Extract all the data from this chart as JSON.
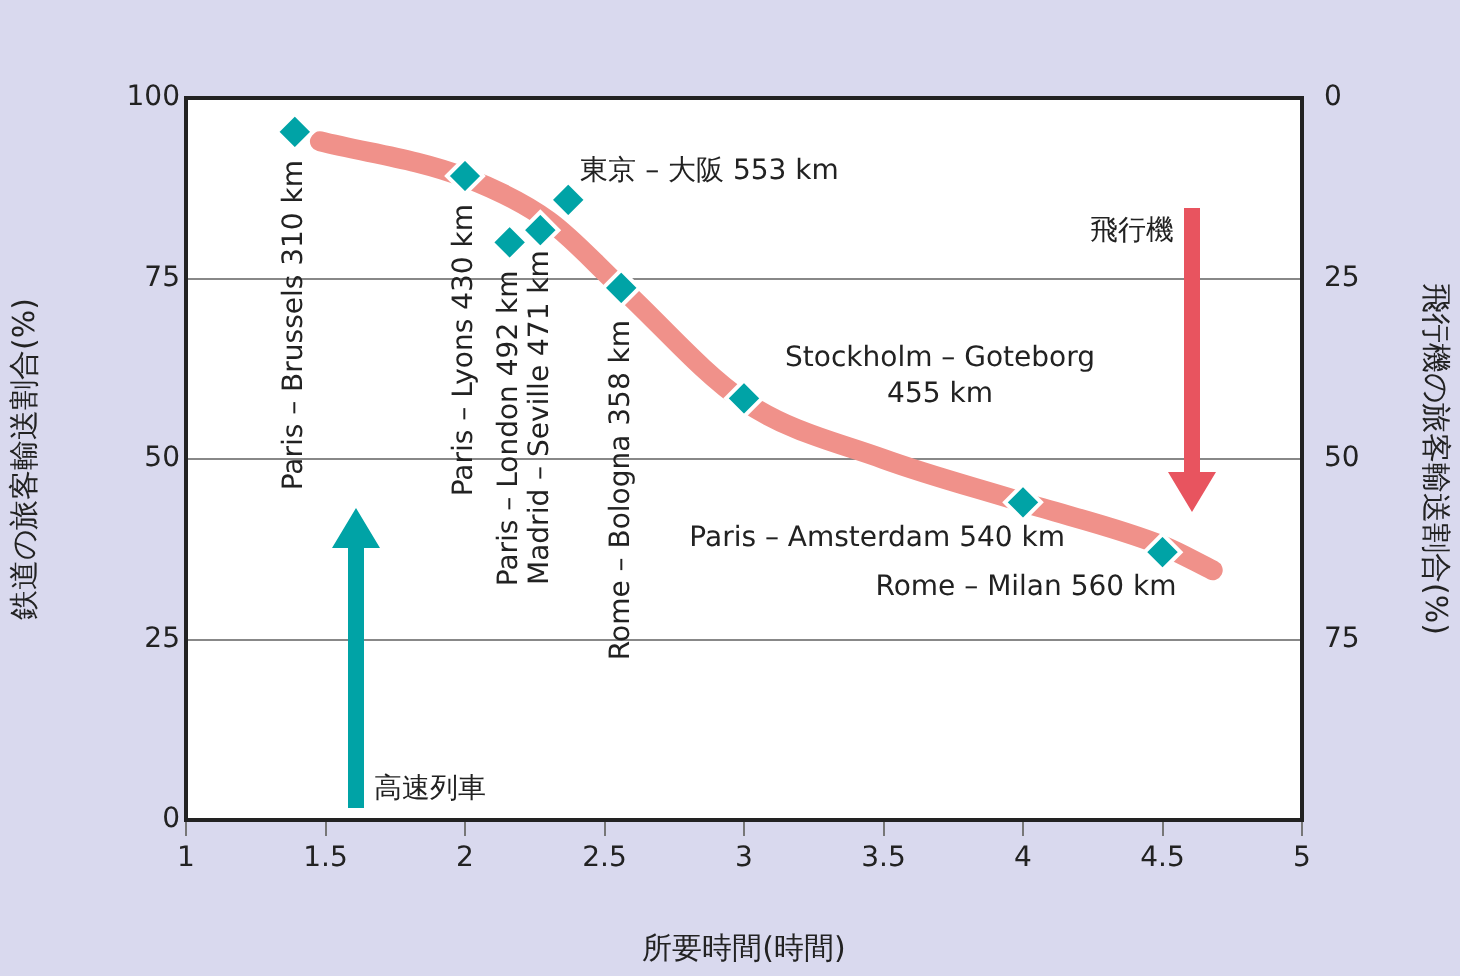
{
  "chart_data": {
    "type": "scatter",
    "xlabel": "所要時間(時間)",
    "ylabel": "鉄道の旅客輸送割合(%)",
    "y2label": "飛行機の旅客輸送割合(%)",
    "xlim": [
      1,
      5
    ],
    "xticks": [
      1,
      1.5,
      2,
      2.5,
      3,
      3.5,
      4,
      4.5,
      5
    ],
    "ylim": [
      0,
      100
    ],
    "yticks": [
      0,
      25,
      50,
      75,
      100
    ],
    "y2lim": [
      100,
      0
    ],
    "y2ticks": [
      0,
      25,
      50,
      75
    ],
    "grid": "y",
    "legend": false,
    "marker": "diamond",
    "series": [
      {
        "type": "line",
        "color": "#f0918a",
        "marker": "none",
        "x": [
          1.48,
          2.0,
          2.3,
          2.56,
          3.0,
          3.5,
          4.0,
          4.5,
          4.68
        ],
        "values": [
          94,
          89,
          83,
          73.7,
          58,
          50,
          44,
          38,
          34.6
        ]
      },
      {
        "type": "scatter",
        "color": "#00a3a6",
        "x": [
          1.39,
          2.0,
          2.16,
          2.27,
          2.37,
          2.56,
          3.0,
          4.0,
          4.5
        ],
        "values": [
          95.3,
          89.2,
          80,
          81.7,
          85.9,
          73.7,
          58.4,
          44,
          37.1
        ]
      }
    ],
    "annotations": [
      {
        "text": "Paris – Brussels 310 km",
        "x": 1.39,
        "y": 95.3
      },
      {
        "text": "Paris – Lyons 430 km",
        "x": 2.0,
        "y": 89.2
      },
      {
        "text": "Paris – London 492 km",
        "x": 2.16,
        "y": 80
      },
      {
        "text": "Madrid – Seville 471 km",
        "x": 2.27,
        "y": 81.7
      },
      {
        "text": "東京 – 大阪 553 km",
        "x": 2.37,
        "y": 85.9
      },
      {
        "text": "Rome – Bologna 358 km",
        "x": 2.56,
        "y": 73.7
      },
      {
        "text": "Stockholm – Goteborg 455 km",
        "x": 3.0,
        "y": 58.4
      },
      {
        "text": "Paris – Amsterdam 540 km",
        "x": 4.0,
        "y": 44
      },
      {
        "text": "Rome – Milan 560 km",
        "x": 4.5,
        "y": 37.1
      },
      "高速列車",
      "飛行機"
    ]
  }
}
